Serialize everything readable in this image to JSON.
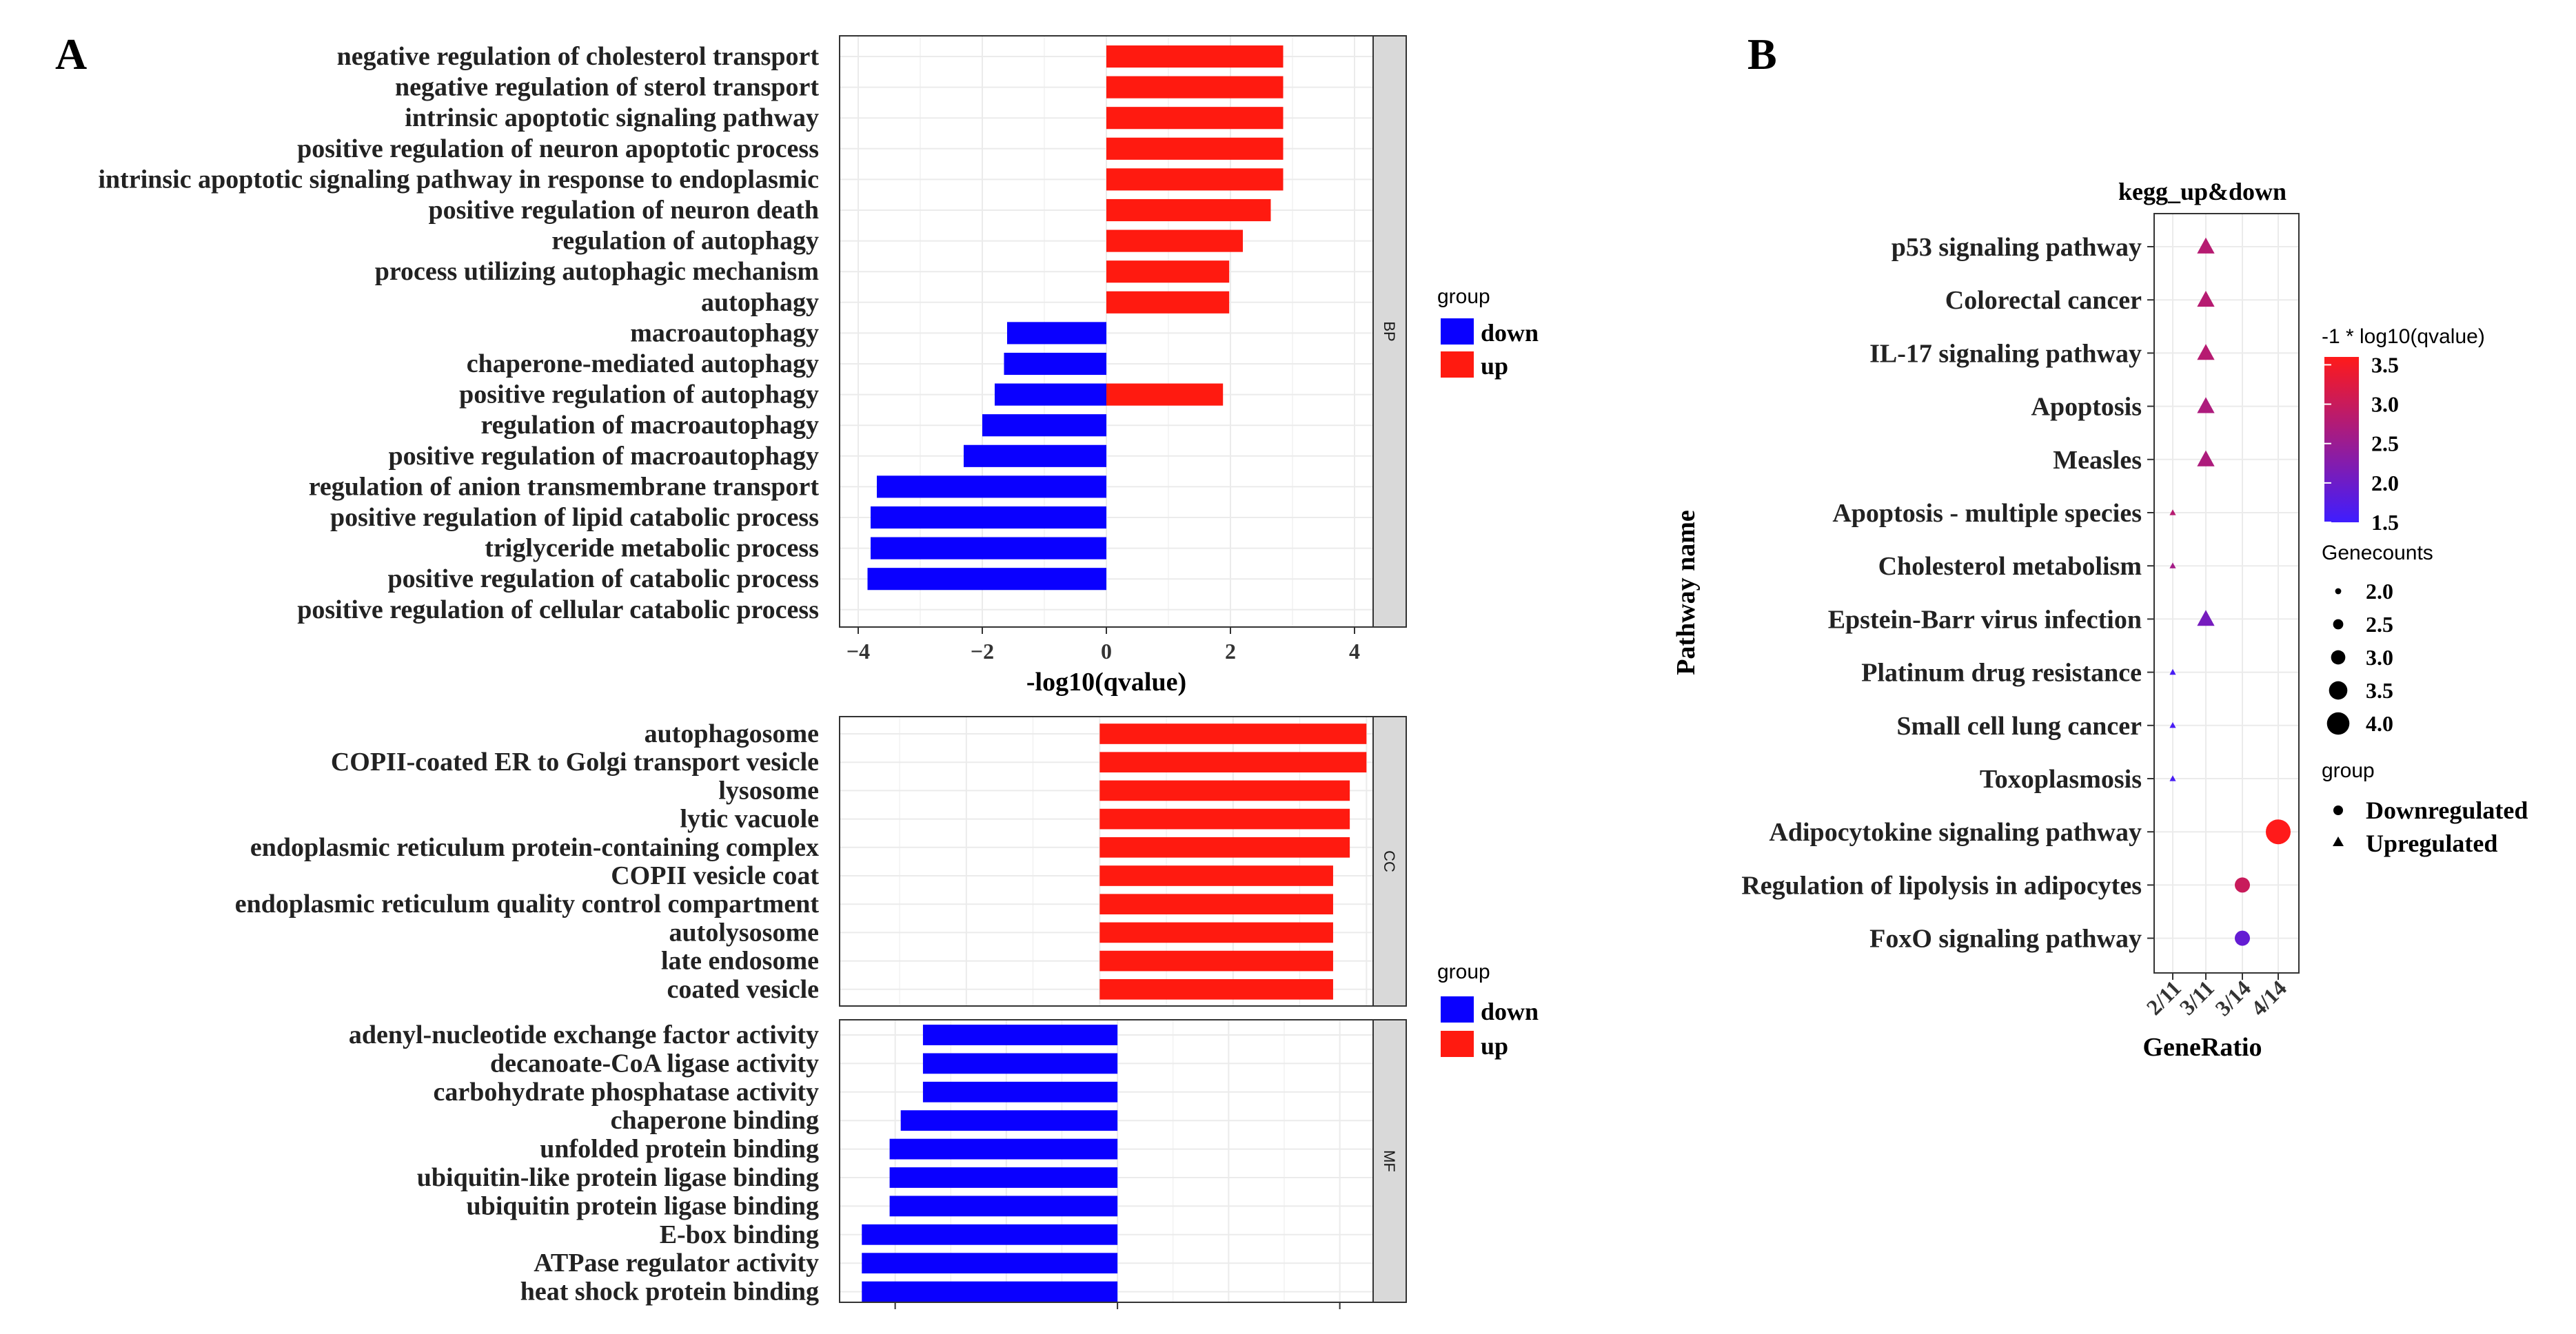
{
  "panel_a": {
    "label": "A",
    "legend_top": {
      "title": "group",
      "items": [
        "down",
        "up"
      ]
    },
    "legend_bottom": {
      "title": "group",
      "items": [
        "down",
        "up"
      ]
    }
  },
  "panel_b": {
    "label": "B"
  },
  "colors": {
    "down": "#0a00ff",
    "up": "#ff1a10",
    "strip": "#d9d9d9",
    "grid": "#ebebeb"
  },
  "chart_data": [
    {
      "type": "bar",
      "orientation": "horizontal",
      "facet": "BP",
      "xlabel": "-log10(qvalue)",
      "xlim": [
        -4.3,
        4.3
      ],
      "xticks": [
        -4,
        -2,
        0,
        2,
        4
      ],
      "xtick_labels": [
        "−4",
        "−2",
        "0",
        "2",
        "4"
      ],
      "categories": [
        "negative regulation of cholesterol transport",
        "negative regulation of sterol transport",
        "intrinsic apoptotic signaling pathway",
        "positive regulation of neuron apoptotic process",
        "intrinsic apoptotic signaling pathway in response to endoplasmic",
        "positive regulation of neuron death",
        "regulation of autophagy",
        "process utilizing autophagic mechanism",
        "autophagy",
        "macroautophagy",
        "chaperone-mediated autophagy",
        "positive regulation of autophagy",
        "regulation of macroautophagy",
        "positive regulation of macroautophagy",
        "regulation of anion transmembrane transport",
        "positive regulation of lipid catabolic process",
        "triglyceride metabolic process",
        "positive regulation of catabolic process",
        "positive regulation of cellular catabolic process"
      ],
      "series": [
        {
          "name": "up",
          "values": [
            2.85,
            2.85,
            2.85,
            2.85,
            2.85,
            2.65,
            2.2,
            1.98,
            1.98,
            0,
            0,
            1.88,
            0,
            0,
            0,
            0,
            0,
            0,
            0
          ]
        },
        {
          "name": "down",
          "values": [
            0,
            0,
            0,
            0,
            0,
            0,
            0,
            0,
            0,
            -1.6,
            -1.65,
            -1.8,
            -2.0,
            -2.3,
            -3.7,
            -3.8,
            -3.8,
            -3.85,
            0
          ]
        }
      ]
    },
    {
      "type": "bar",
      "orientation": "horizontal",
      "facet": "CC",
      "categories": [
        "autophagosome",
        "COPII-coated ER to Golgi transport vesicle",
        "lysosome",
        "lytic vacuole",
        "endoplasmic reticulum protein-containing complex",
        "COPII vesicle coat",
        "endoplasmic reticulum quality control compartment",
        "autolysosome",
        "late endosome",
        "coated vesicle"
      ],
      "series": [
        {
          "name": "up",
          "values": [
            4.0,
            4.0,
            3.75,
            3.75,
            3.75,
            3.5,
            3.5,
            3.5,
            3.5,
            3.5
          ]
        }
      ]
    },
    {
      "type": "bar",
      "orientation": "horizontal",
      "facet": "MF",
      "categories": [
        "adenyl-nucleotide exchange factor activity",
        "decanoate-CoA ligase activity",
        "carbohydrate phosphatase activity",
        "chaperone binding",
        "unfolded protein binding",
        "ubiquitin-like protein ligase binding",
        "ubiquitin protein ligase binding",
        "E-box binding",
        "ATPase regulator activity",
        "heat shock protein binding"
      ],
      "series": [
        {
          "name": "down",
          "values": [
            -3.5,
            -3.5,
            -3.5,
            -3.9,
            -4.1,
            -4.1,
            -4.1,
            -4.6,
            -4.6,
            -4.6
          ]
        }
      ]
    },
    {
      "type": "scatter",
      "title": "kegg_up&down",
      "xlabel": "GeneRatio",
      "ylabel": "Pathway name",
      "x_categories": [
        "2/11",
        "3/11",
        "3/14",
        "4/14"
      ],
      "categories": [
        "p53 signaling pathway",
        "Colorectal cancer",
        "IL-17 signaling pathway",
        "Apoptosis",
        "Measles",
        "Apoptosis - multiple species",
        "Cholesterol metabolism",
        "Epstein-Barr virus infection",
        "Platinum drug resistance",
        "Small cell lung cancer",
        "Toxoplasmosis",
        "Adipocytokine signaling pathway",
        "Regulation of lipolysis in adipocytes",
        "FoxO signaling pathway"
      ],
      "points": [
        {
          "pathway": "p53 signaling pathway",
          "gene_ratio": "3/11",
          "qvalue_score": 2.8,
          "gene_counts": 3,
          "group": "Upregulated"
        },
        {
          "pathway": "Colorectal cancer",
          "gene_ratio": "3/11",
          "qvalue_score": 2.8,
          "gene_counts": 3,
          "group": "Upregulated"
        },
        {
          "pathway": "IL-17 signaling pathway",
          "gene_ratio": "3/11",
          "qvalue_score": 2.8,
          "gene_counts": 3,
          "group": "Upregulated"
        },
        {
          "pathway": "Apoptosis",
          "gene_ratio": "3/11",
          "qvalue_score": 2.7,
          "gene_counts": 3,
          "group": "Upregulated"
        },
        {
          "pathway": "Measles",
          "gene_ratio": "3/11",
          "qvalue_score": 2.7,
          "gene_counts": 3,
          "group": "Upregulated"
        },
        {
          "pathway": "Apoptosis - multiple species",
          "gene_ratio": "2/11",
          "qvalue_score": 2.8,
          "gene_counts": 2,
          "group": "Upregulated"
        },
        {
          "pathway": "Cholesterol metabolism",
          "gene_ratio": "2/11",
          "qvalue_score": 2.6,
          "gene_counts": 2,
          "group": "Upregulated"
        },
        {
          "pathway": "Epstein-Barr virus infection",
          "gene_ratio": "3/11",
          "qvalue_score": 2.1,
          "gene_counts": 3,
          "group": "Upregulated"
        },
        {
          "pathway": "Platinum drug resistance",
          "gene_ratio": "2/11",
          "qvalue_score": 1.6,
          "gene_counts": 2,
          "group": "Upregulated"
        },
        {
          "pathway": "Small cell lung cancer",
          "gene_ratio": "2/11",
          "qvalue_score": 1.6,
          "gene_counts": 2,
          "group": "Upregulated"
        },
        {
          "pathway": "Toxoplasmosis",
          "gene_ratio": "2/11",
          "qvalue_score": 1.6,
          "gene_counts": 2,
          "group": "Upregulated"
        },
        {
          "pathway": "Adipocytokine signaling pathway",
          "gene_ratio": "4/14",
          "qvalue_score": 3.6,
          "gene_counts": 4,
          "group": "Downregulated"
        },
        {
          "pathway": "Regulation of lipolysis in adipocytes",
          "gene_ratio": "3/14",
          "qvalue_score": 3.0,
          "gene_counts": 3,
          "group": "Downregulated"
        },
        {
          "pathway": "FoxO signaling pathway",
          "gene_ratio": "3/14",
          "qvalue_score": 1.9,
          "gene_counts": 3,
          "group": "Downregulated"
        }
      ],
      "color_legend": {
        "title": "-1 * log10(qvalue)",
        "range": [
          1.5,
          3.6
        ],
        "breaks": [
          "3.5",
          "3.0",
          "2.5",
          "2.0",
          "1.5"
        ],
        "low": "#3f1dff",
        "high": "#ff1a1a"
      },
      "size_legend": {
        "title": "Genecounts",
        "breaks": [
          "2.0",
          "2.5",
          "3.0",
          "3.5",
          "4.0"
        ]
      },
      "shape_legend": {
        "title": "group",
        "items": [
          "Downregulated",
          "Upregulated"
        ]
      }
    }
  ]
}
